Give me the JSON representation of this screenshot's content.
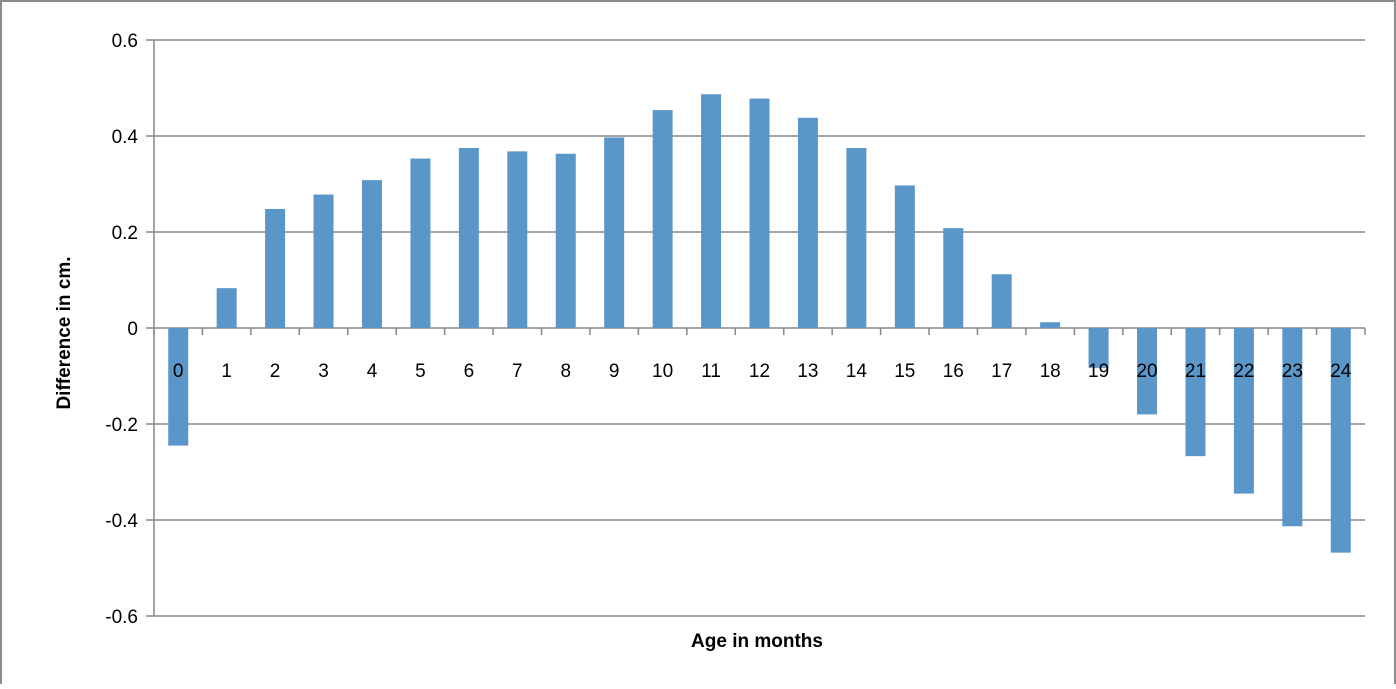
{
  "chart_data": {
    "type": "bar",
    "title": "",
    "xlabel": "Age in months",
    "ylabel": "Difference in cm.",
    "ylim": [
      -0.6,
      0.6
    ],
    "yticks": [
      -0.6,
      -0.4,
      -0.2,
      0,
      0.2,
      0.4,
      0.6
    ],
    "ytick_labels": [
      "-0.6",
      "-0.4",
      "-0.2",
      "0",
      "0.2",
      "0.4",
      "0.6"
    ],
    "grid": "horizontal",
    "legend": "none",
    "categories": [
      "0",
      "1",
      "2",
      "3",
      "4",
      "5",
      "6",
      "7",
      "8",
      "9",
      "10",
      "11",
      "12",
      "13",
      "14",
      "15",
      "16",
      "17",
      "18",
      "19",
      "20",
      "21",
      "22",
      "23",
      "24"
    ],
    "values": [
      -0.245,
      0.083,
      0.248,
      0.278,
      0.308,
      0.353,
      0.375,
      0.368,
      0.363,
      0.397,
      0.454,
      0.487,
      0.478,
      0.438,
      0.375,
      0.297,
      0.208,
      0.112,
      0.012,
      -0.083,
      -0.18,
      -0.267,
      -0.345,
      -0.413,
      -0.468
    ],
    "bar_color": "#5b96c9",
    "grid_color": "#878787",
    "frame_color": "#8c8c8c"
  }
}
